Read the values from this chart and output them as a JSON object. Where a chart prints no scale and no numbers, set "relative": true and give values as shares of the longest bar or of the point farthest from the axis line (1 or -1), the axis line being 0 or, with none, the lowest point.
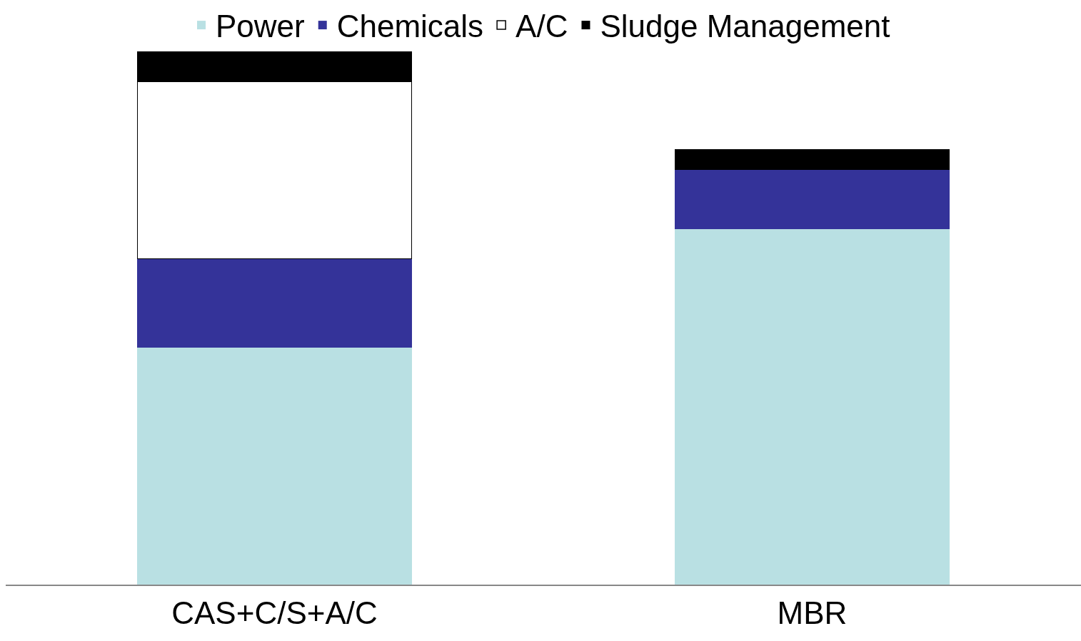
{
  "chart_data": {
    "type": "bar",
    "stacked": true,
    "relative": true,
    "categories": [
      "CAS+C/S+A/C",
      "MBR"
    ],
    "series": [
      {
        "name": "Power",
        "color": "#b9e0e3",
        "values": [
          0.444,
          0.667
        ]
      },
      {
        "name": "Chemicals",
        "color": "#343399",
        "values": [
          0.167,
          0.112
        ]
      },
      {
        "name": "A/C",
        "color": "#ffffff",
        "values": [
          0.333,
          0
        ]
      },
      {
        "name": "Sludge Management",
        "color": "#000000",
        "values": [
          0.056,
          0.037
        ]
      }
    ],
    "legend": "top"
  }
}
